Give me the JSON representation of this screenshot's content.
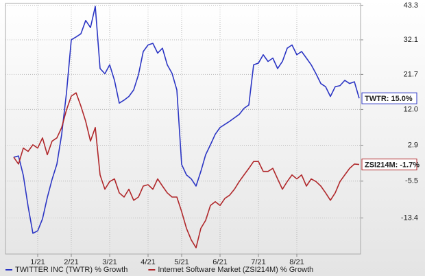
{
  "chart_data": {
    "type": "line",
    "log_scale": true,
    "grid": true,
    "categories": [
      null,
      null,
      null,
      null,
      null,
      "1/21",
      null,
      null,
      null,
      null,
      null,
      null,
      "2/21",
      null,
      null,
      null,
      null,
      null,
      null,
      null,
      "3/21",
      null,
      null,
      null,
      null,
      null,
      null,
      null,
      "4/21",
      null,
      null,
      null,
      null,
      null,
      null,
      "5/21",
      null,
      null,
      null,
      null,
      null,
      null,
      null,
      "6/21",
      null,
      null,
      null,
      null,
      null,
      null,
      null,
      "7/21",
      null,
      null,
      null,
      null,
      null,
      null,
      null,
      "8/21",
      null,
      null,
      null,
      null,
      null,
      null,
      null,
      null,
      null,
      null,
      null,
      null,
      null
    ],
    "series": [
      {
        "name": "TWITTER INC (TWTR) % Growth",
        "color": "#2b35c4",
        "end_label": "TWTR: 15.0%",
        "values": [
          0,
          0.3,
          -4.2,
          -11,
          -16.5,
          -16,
          -13.6,
          -9.1,
          -5.1,
          -1.6,
          5.6,
          16.5,
          32.1,
          33,
          34,
          38.3,
          36,
          43,
          23.4,
          21.9,
          24.5,
          20,
          13.7,
          14.5,
          15.5,
          17.3,
          21.6,
          28.5,
          30.5,
          31,
          28,
          29.5,
          24.5,
          22,
          17.3,
          -1.7,
          -4.1,
          -5,
          -6.6,
          -3.3,
          0.6,
          3,
          5.6,
          7.3,
          8.1,
          8.9,
          9.8,
          10.7,
          12.3,
          13.2,
          24.5,
          25,
          27.5,
          25.5,
          26.5,
          23.4,
          25.5,
          29.5,
          30.5,
          27.5,
          28.5,
          26.5,
          24.5,
          21.9,
          19.1,
          18.2,
          15.5,
          18.2,
          18.5,
          20,
          19.1,
          19.6,
          15.0
        ]
      },
      {
        "name": "Internet Software Market (ZSI214M) % Growth",
        "color": "#b0272a",
        "end_label": "ZSI214M: -1.7%",
        "values": [
          0,
          -1.6,
          2.2,
          1.4,
          3,
          2.2,
          4.7,
          0.6,
          3.9,
          4.7,
          7.3,
          11.9,
          15.6,
          16.5,
          12.9,
          8.9,
          3.9,
          7.3,
          -4.1,
          -7.3,
          -5.6,
          -5,
          -8.1,
          -9,
          -7.3,
          -9.7,
          -9,
          -6.6,
          -6.3,
          -7.3,
          -5,
          -6.6,
          -8.1,
          -9,
          -9,
          -12.1,
          -15.5,
          -17.8,
          -19.3,
          -15.5,
          -13.9,
          -10.8,
          -10,
          -10.8,
          -9.3,
          -8.6,
          -7.3,
          -5.6,
          -4.1,
          -2.6,
          -1,
          -1,
          -3.3,
          -3.3,
          -2.6,
          -5,
          -7.3,
          -5.6,
          -4.1,
          -5,
          -4.1,
          -6.6,
          -5,
          -5.6,
          -6.6,
          -8.1,
          -9.7,
          -8.1,
          -5.6,
          -4.1,
          -2.6,
          -1.6,
          -1.7
        ]
      }
    ],
    "ylim": [
      -20.5,
      44
    ],
    "yticks": [
      43.3,
      32.1,
      21.7,
      {
        "value": 12,
        "label": "12.0"
      },
      2.9,
      -5.5,
      -13.4
    ]
  }
}
